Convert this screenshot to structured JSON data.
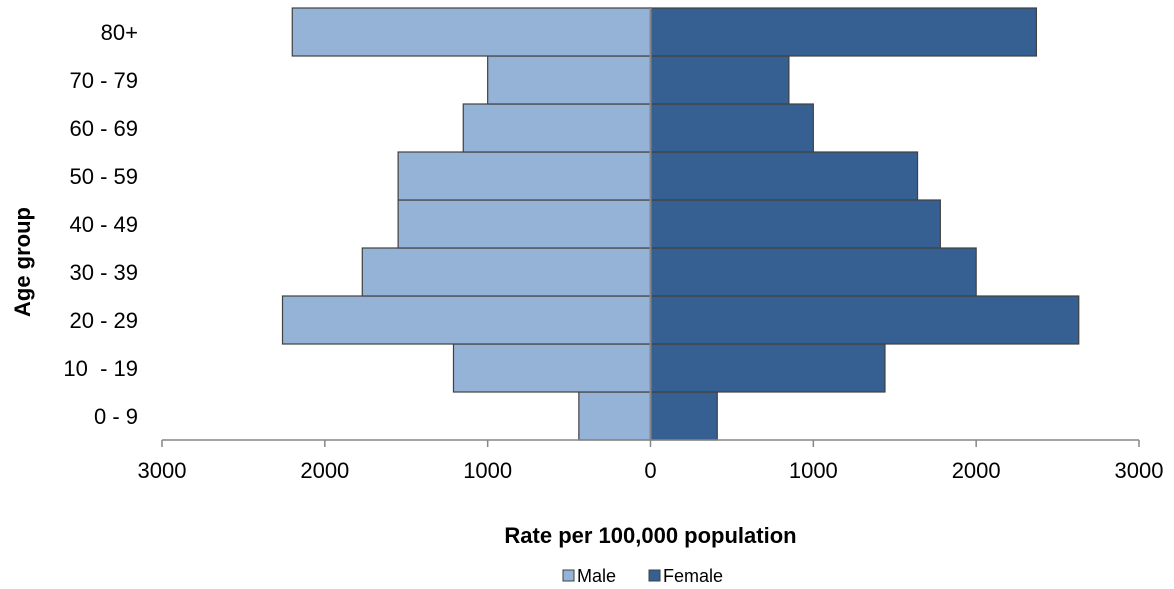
{
  "chart_data": {
    "type": "bar",
    "orientation": "horizontal-diverging",
    "categories": [
      "0 - 9",
      "10  - 19",
      "20 - 29",
      "30 - 39",
      "40 - 49",
      "50 - 59",
      "60 - 69",
      "70 - 79",
      "80+"
    ],
    "series": [
      {
        "name": "Male",
        "color": "#95B3D7",
        "values": [
          440,
          1210,
          2260,
          1770,
          1550,
          1550,
          1150,
          1000,
          2200
        ]
      },
      {
        "name": "Female",
        "color": "#366092",
        "values": [
          410,
          1440,
          2630,
          2000,
          1780,
          1640,
          1000,
          850,
          2370
        ]
      }
    ],
    "xlim": [
      -3000,
      3000
    ],
    "x_ticks": [
      -3000,
      -2000,
      -1000,
      0,
      1000,
      2000,
      3000
    ],
    "x_tick_labels": [
      "3000",
      "2000",
      "1000",
      "0",
      "1000",
      "2000",
      "3000"
    ],
    "xlabel": "Rate per 100,000 population",
    "ylabel": "Age group",
    "legend_position": "bottom",
    "grid": false
  }
}
